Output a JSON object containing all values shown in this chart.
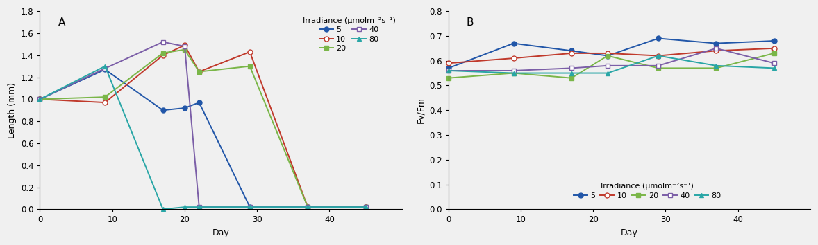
{
  "panel_A": {
    "title": "A",
    "xlabel": "Day",
    "ylabel": "Length (mm)",
    "ylim": [
      0.0,
      1.8
    ],
    "xlim": [
      0,
      50
    ],
    "yticks": [
      0.0,
      0.2,
      0.4,
      0.6,
      0.8,
      1.0,
      1.2,
      1.4,
      1.6,
      1.8
    ],
    "xticks": [
      0,
      10,
      20,
      30,
      40
    ],
    "series": {
      "5": {
        "x": [
          0,
          9,
          17,
          20,
          22,
          29,
          37,
          45
        ],
        "y": [
          1.0,
          1.27,
          0.9,
          0.92,
          0.97,
          0.02,
          0.02,
          0.02
        ],
        "color": "#2156a8",
        "marker": "o",
        "mfc": "#2156a8"
      },
      "10": {
        "x": [
          0,
          9,
          17,
          20,
          22,
          29,
          37,
          45
        ],
        "y": [
          1.0,
          0.97,
          1.4,
          1.49,
          1.25,
          1.43,
          0.02,
          0.02
        ],
        "color": "#c0392b",
        "marker": "o",
        "mfc": "white"
      },
      "20": {
        "x": [
          0,
          9,
          17,
          20,
          22,
          29,
          37,
          45
        ],
        "y": [
          1.0,
          1.02,
          1.42,
          1.45,
          1.25,
          1.3,
          0.02,
          0.02
        ],
        "color": "#7ab648",
        "marker": "s",
        "mfc": "#7ab648"
      },
      "40": {
        "x": [
          0,
          9,
          17,
          20,
          22,
          29,
          37,
          45
        ],
        "y": [
          1.0,
          1.28,
          1.52,
          1.48,
          0.02,
          0.02,
          0.02,
          0.02
        ],
        "color": "#7b5ea7",
        "marker": "s",
        "mfc": "white"
      },
      "80": {
        "x": [
          0,
          9,
          17,
          20,
          22,
          29,
          37,
          45
        ],
        "y": [
          1.0,
          1.3,
          0.0,
          0.02,
          0.02,
          0.02,
          0.02,
          0.02
        ],
        "color": "#29a6a6",
        "marker": "^",
        "mfc": "#29a6a6"
      }
    },
    "legend_title": "Irradiance (μmolm⁻²s⁻¹)",
    "legend_order": [
      "5",
      "10",
      "20",
      "40",
      "80"
    ]
  },
  "panel_B": {
    "title": "B",
    "xlabel": "Day",
    "ylabel": "Fv/Fm",
    "ylim": [
      0.0,
      0.8
    ],
    "xlim": [
      0,
      50
    ],
    "yticks": [
      0.0,
      0.1,
      0.2,
      0.3,
      0.4,
      0.5,
      0.6,
      0.7,
      0.8
    ],
    "xticks": [
      0,
      10,
      20,
      30,
      40
    ],
    "series": {
      "5": {
        "x": [
          0,
          9,
          17,
          22,
          29,
          37,
          45
        ],
        "y": [
          0.57,
          0.67,
          0.64,
          0.62,
          0.69,
          0.67,
          0.68
        ],
        "color": "#2156a8",
        "marker": "o",
        "mfc": "#2156a8"
      },
      "10": {
        "x": [
          0,
          9,
          17,
          22,
          29,
          37,
          45
        ],
        "y": [
          0.59,
          0.61,
          0.63,
          0.63,
          0.62,
          0.64,
          0.65
        ],
        "color": "#c0392b",
        "marker": "o",
        "mfc": "white"
      },
      "20": {
        "x": [
          0,
          9,
          17,
          22,
          29,
          37,
          45
        ],
        "y": [
          0.53,
          0.55,
          0.53,
          0.62,
          0.57,
          0.57,
          0.63
        ],
        "color": "#7ab648",
        "marker": "s",
        "mfc": "#7ab648"
      },
      "40": {
        "x": [
          0,
          9,
          17,
          22,
          29,
          37,
          45
        ],
        "y": [
          0.56,
          0.56,
          0.57,
          0.58,
          0.58,
          0.65,
          0.59
        ],
        "color": "#7b5ea7",
        "marker": "s",
        "mfc": "white"
      },
      "80": {
        "x": [
          0,
          9,
          17,
          22,
          29,
          37,
          45
        ],
        "y": [
          0.56,
          0.55,
          0.55,
          0.55,
          0.62,
          0.58,
          0.57
        ],
        "color": "#29a6a6",
        "marker": "^",
        "mfc": "#29a6a6"
      }
    },
    "legend_title": "Irradiance (μmolm⁻²s⁻¹)",
    "legend_order": [
      "5",
      "10",
      "20",
      "40",
      "80"
    ]
  },
  "figsize": [
    11.78,
    3.54
  ],
  "dpi": 100,
  "background": "#f0f0f0"
}
